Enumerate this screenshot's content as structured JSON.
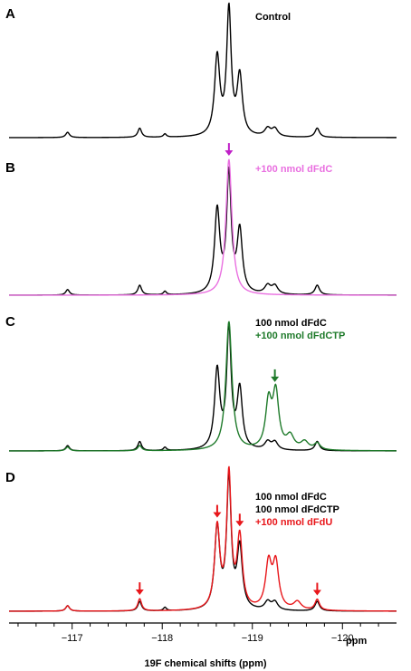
{
  "chart_data": {
    "type": "line",
    "xlabel": "19F chemical shifts (ppm)",
    "x_unit": "ppm",
    "x_reversed": true,
    "xlim": [
      -116.3,
      -120.6
    ],
    "x_ticks": [
      -117,
      -118,
      -119,
      -120
    ],
    "x_tick_labels": [
      "−117",
      "−118",
      "−119",
      "−120"
    ],
    "panels": [
      {
        "letter": "A",
        "legend": [
          {
            "text": "Control",
            "color": "#000000"
          }
        ],
        "series": [
          {
            "color": "#000000",
            "peaks": [
              {
                "x": -116.95,
                "height": 0.04,
                "width": 0.025
              },
              {
                "x": -117.75,
                "height": 0.07,
                "width": 0.025
              },
              {
                "x": -118.03,
                "height": 0.025,
                "width": 0.02
              },
              {
                "x": -118.61,
                "height": 0.6,
                "width": 0.035
              },
              {
                "x": -118.74,
                "height": 0.95,
                "width": 0.03
              },
              {
                "x": -118.86,
                "height": 0.45,
                "width": 0.035
              },
              {
                "x": -119.17,
                "height": 0.06,
                "width": 0.04
              },
              {
                "x": -119.25,
                "height": 0.06,
                "width": 0.04
              },
              {
                "x": -119.72,
                "height": 0.07,
                "width": 0.03
              }
            ]
          }
        ]
      },
      {
        "letter": "B",
        "legend": [
          {
            "text": "+100 nmol dFdC",
            "color": "#e96fe0"
          }
        ],
        "arrows": [
          {
            "x": -118.74,
            "color": "#c020c8"
          }
        ],
        "series": [
          {
            "color": "#000000",
            "peaks": [
              {
                "x": -116.95,
                "height": 0.04,
                "width": 0.025
              },
              {
                "x": -117.75,
                "height": 0.07,
                "width": 0.025
              },
              {
                "x": -118.03,
                "height": 0.025,
                "width": 0.02
              },
              {
                "x": -118.61,
                "height": 0.6,
                "width": 0.035
              },
              {
                "x": -118.74,
                "height": 0.85,
                "width": 0.03
              },
              {
                "x": -118.86,
                "height": 0.45,
                "width": 0.035
              },
              {
                "x": -119.17,
                "height": 0.06,
                "width": 0.04
              },
              {
                "x": -119.25,
                "height": 0.06,
                "width": 0.04
              },
              {
                "x": -119.72,
                "height": 0.07,
                "width": 0.03
              }
            ]
          },
          {
            "color": "#e96fe0",
            "peaks": [
              {
                "x": -118.74,
                "height": 0.98,
                "width": 0.04
              }
            ]
          }
        ]
      },
      {
        "letter": "C",
        "legend": [
          {
            "text": "100 nmol dFdC",
            "color": "#000000"
          },
          {
            "text": "+100 nmol dFdCTP",
            "color": "#1e7a2a"
          }
        ],
        "arrows": [
          {
            "x": -119.25,
            "color": "#1e7a2a"
          }
        ],
        "series": [
          {
            "color": "#000000",
            "peaks": [
              {
                "x": -116.95,
                "height": 0.04,
                "width": 0.025
              },
              {
                "x": -117.75,
                "height": 0.07,
                "width": 0.025
              },
              {
                "x": -118.03,
                "height": 0.025,
                "width": 0.02
              },
              {
                "x": -118.61,
                "height": 0.6,
                "width": 0.035
              },
              {
                "x": -118.74,
                "height": 0.9,
                "width": 0.03
              },
              {
                "x": -118.86,
                "height": 0.45,
                "width": 0.035
              },
              {
                "x": -119.17,
                "height": 0.06,
                "width": 0.04
              },
              {
                "x": -119.25,
                "height": 0.06,
                "width": 0.04
              },
              {
                "x": -119.72,
                "height": 0.07,
                "width": 0.03
              }
            ]
          },
          {
            "color": "#1e7a2a",
            "peaks": [
              {
                "x": -118.74,
                "height": 0.98,
                "width": 0.04
              },
              {
                "x": -119.18,
                "height": 0.35,
                "width": 0.04
              },
              {
                "x": -119.26,
                "height": 0.42,
                "width": 0.04
              },
              {
                "x": -119.42,
                "height": 0.1,
                "width": 0.05
              },
              {
                "x": -119.58,
                "height": 0.06,
                "width": 0.05
              },
              {
                "x": -119.72,
                "height": 0.05,
                "width": 0.04
              },
              {
                "x": -117.75,
                "height": 0.04,
                "width": 0.025
              },
              {
                "x": -116.95,
                "height": 0.03,
                "width": 0.025
              }
            ]
          }
        ]
      },
      {
        "letter": "D",
        "legend": [
          {
            "text": "100 nmol dFdC",
            "color": "#000000"
          },
          {
            "text": "100 nmol dFdCTP",
            "color": "#000000"
          },
          {
            "text": "+100 nmol dFdU",
            "color": "#e8161a"
          }
        ],
        "arrows": [
          {
            "x": -117.75,
            "color": "#e8161a"
          },
          {
            "x": -118.61,
            "color": "#e8161a"
          },
          {
            "x": -118.86,
            "color": "#e8161a"
          },
          {
            "x": -119.72,
            "color": "#e8161a"
          }
        ],
        "series": [
          {
            "color": "#000000",
            "peaks": [
              {
                "x": -116.95,
                "height": 0.04,
                "width": 0.025
              },
              {
                "x": -117.75,
                "height": 0.07,
                "width": 0.025
              },
              {
                "x": -118.03,
                "height": 0.025,
                "width": 0.02
              },
              {
                "x": -118.61,
                "height": 0.6,
                "width": 0.035
              },
              {
                "x": -118.74,
                "height": 0.95,
                "width": 0.03
              },
              {
                "x": -118.86,
                "height": 0.45,
                "width": 0.035
              },
              {
                "x": -119.17,
                "height": 0.06,
                "width": 0.04
              },
              {
                "x": -119.25,
                "height": 0.06,
                "width": 0.04
              },
              {
                "x": -119.72,
                "height": 0.07,
                "width": 0.03
              }
            ]
          },
          {
            "color": "#e8161a",
            "peaks": [
              {
                "x": -116.95,
                "height": 0.04,
                "width": 0.025
              },
              {
                "x": -117.75,
                "height": 0.09,
                "width": 0.025
              },
              {
                "x": -118.61,
                "height": 0.6,
                "width": 0.035
              },
              {
                "x": -118.74,
                "height": 0.98,
                "width": 0.03
              },
              {
                "x": -118.86,
                "height": 0.52,
                "width": 0.035
              },
              {
                "x": -119.18,
                "height": 0.33,
                "width": 0.04
              },
              {
                "x": -119.26,
                "height": 0.33,
                "width": 0.04
              },
              {
                "x": -119.5,
                "height": 0.06,
                "width": 0.05
              },
              {
                "x": -119.72,
                "height": 0.08,
                "width": 0.03
              }
            ]
          }
        ]
      }
    ]
  }
}
